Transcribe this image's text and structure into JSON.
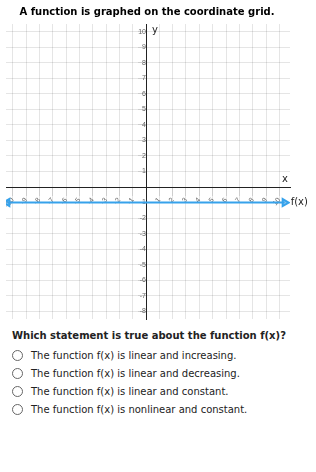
{
  "chart_data": {
    "type": "line",
    "title": "A function is graphed on the coordinate grid.",
    "xlabel": "x",
    "ylabel": "y",
    "x": [
      -10.4,
      10.4
    ],
    "values": [
      -1,
      -1
    ],
    "xlim": [
      -10.5,
      10.8
    ],
    "ylim": [
      -8.5,
      10.5
    ],
    "xticks": [
      -10,
      -9,
      -8,
      -7,
      -6,
      -5,
      -4,
      -3,
      -2,
      -1,
      1,
      2,
      3,
      4,
      5,
      6,
      7,
      8,
      9,
      10
    ],
    "yticks": [
      -8,
      -7,
      -6,
      -5,
      -4,
      -3,
      -2,
      -1,
      1,
      2,
      3,
      4,
      5,
      6,
      7,
      8,
      9,
      10
    ],
    "grid": true,
    "annotations": [
      {
        "text": "f(x)",
        "x": 10.4,
        "y": -1
      },
      {
        "text": "Which statement is true about the function f(x)?"
      },
      {
        "text": "The function f(x) is linear and increasing."
      },
      {
        "text": "The function f(x) is linear and decreasing."
      },
      {
        "text": "The function f(x) is linear and constant."
      },
      {
        "text": "The function f(x) is nonlinear and constant."
      }
    ]
  }
}
